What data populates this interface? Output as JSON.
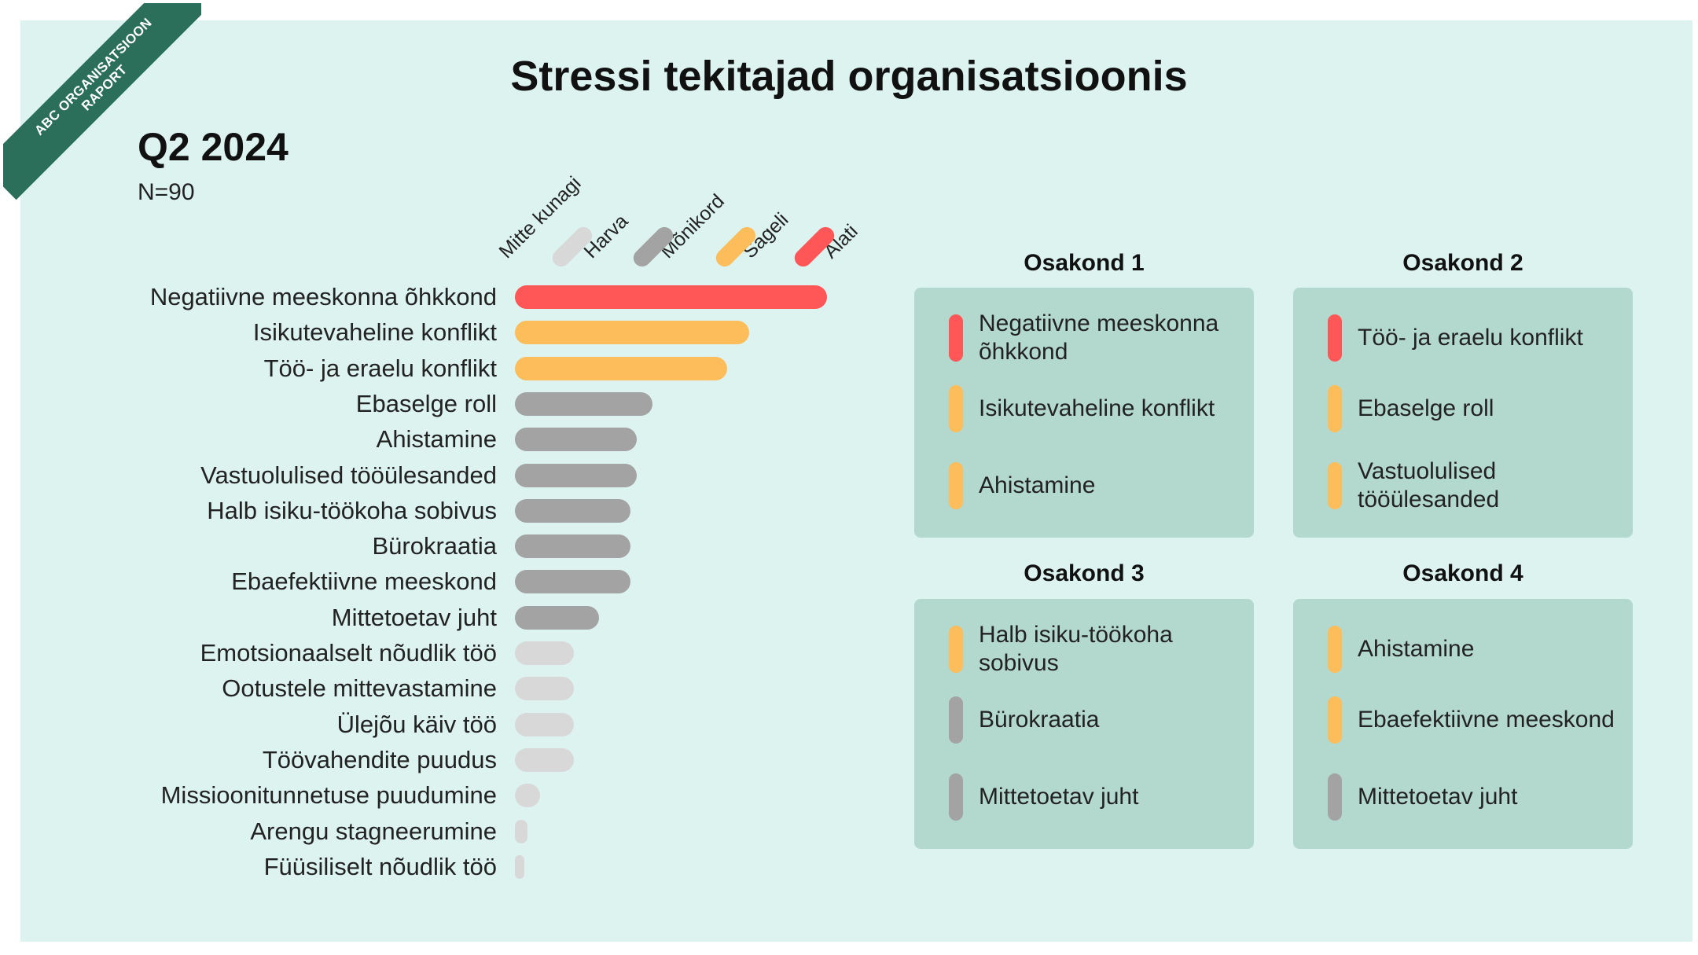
{
  "ribbon": {
    "line1": "ABC ORGANISATSIOON",
    "line2": "RAPORT"
  },
  "title": "Stressi tekitajad organisatsioonis",
  "period": "Q2 2024",
  "sample": "N=90",
  "colors": {
    "Mitte kunagi": "#d8d8d8",
    "Harva": "#d8d8d8",
    "Mõnikord": "#a3a3a3",
    "Sageli": "#fdbd5a",
    "Alati": "#ff5757",
    "panel": "#dcf3ef",
    "card": "#b3d8cd",
    "ribbon": "#2b6e5a"
  },
  "chart_data": {
    "type": "bar",
    "orientation": "horizontal",
    "title": "Stressi tekitajad organisatsioonis",
    "subtitle": "Q2 2024",
    "legend": [
      "Mitte kunagi",
      "Harva",
      "Mõnikord",
      "Sageli",
      "Alati"
    ],
    "legend_placement": "top",
    "grid": false,
    "categories": [
      "Negatiivne meeskonna õhkkond",
      "Isikutevaheline konflikt",
      "Töö- ja eraelu konflikt",
      "Ebaselge roll",
      "Ahistamine",
      "Vastuolulised tööülesanded",
      "Halb isiku-töökoha sobivus",
      "Bürokraatia",
      "Ebaefektiivne meeskond",
      "Mittetoetav juht",
      "Emotsionaalselt nõudlik töö",
      "Ootustele mittevastamine",
      "Ülejõu käiv töö",
      "Töövahendite puudus",
      "Missioonitunnetuse puudumine",
      "Arengu stagneerumine",
      "Füüsiliselt nõudlik töö"
    ],
    "values": [
      100,
      75,
      68,
      44,
      39,
      39,
      37,
      37,
      37,
      27,
      19,
      19,
      19,
      19,
      8,
      4,
      2
    ],
    "levels": [
      "Alati",
      "Sageli",
      "Sageli",
      "Mõnikord",
      "Mõnikord",
      "Mõnikord",
      "Mõnikord",
      "Mõnikord",
      "Mõnikord",
      "Mõnikord",
      "Harva",
      "Harva",
      "Harva",
      "Harva",
      "Harva",
      "Harva",
      "Harva"
    ],
    "xlim": [
      0,
      100
    ]
  },
  "departments": [
    {
      "name": "Osakond 1",
      "items": [
        {
          "text": "Negatiivne meeskonna õhkkond",
          "level": "Alati"
        },
        {
          "text": "Isikutevaheline konflikt",
          "level": "Sageli"
        },
        {
          "text": "Ahistamine",
          "level": "Sageli"
        }
      ]
    },
    {
      "name": "Osakond 2",
      "items": [
        {
          "text": "Töö- ja eraelu konflikt",
          "level": "Alati"
        },
        {
          "text": "Ebaselge roll",
          "level": "Sageli"
        },
        {
          "text": "Vastuolulised tööülesanded",
          "level": "Sageli"
        }
      ]
    },
    {
      "name": "Osakond 3",
      "items": [
        {
          "text": "Halb isiku-töökoha sobivus",
          "level": "Sageli"
        },
        {
          "text": "Bürokraatia",
          "level": "Mõnikord"
        },
        {
          "text": "Mittetoetav juht",
          "level": "Mõnikord"
        }
      ]
    },
    {
      "name": "Osakond 4",
      "items": [
        {
          "text": "Ahistamine",
          "level": "Sageli"
        },
        {
          "text": "Ebaefektiivne meeskond",
          "level": "Sageli"
        },
        {
          "text": "Mittetoetav juht",
          "level": "Mõnikord"
        }
      ]
    }
  ]
}
